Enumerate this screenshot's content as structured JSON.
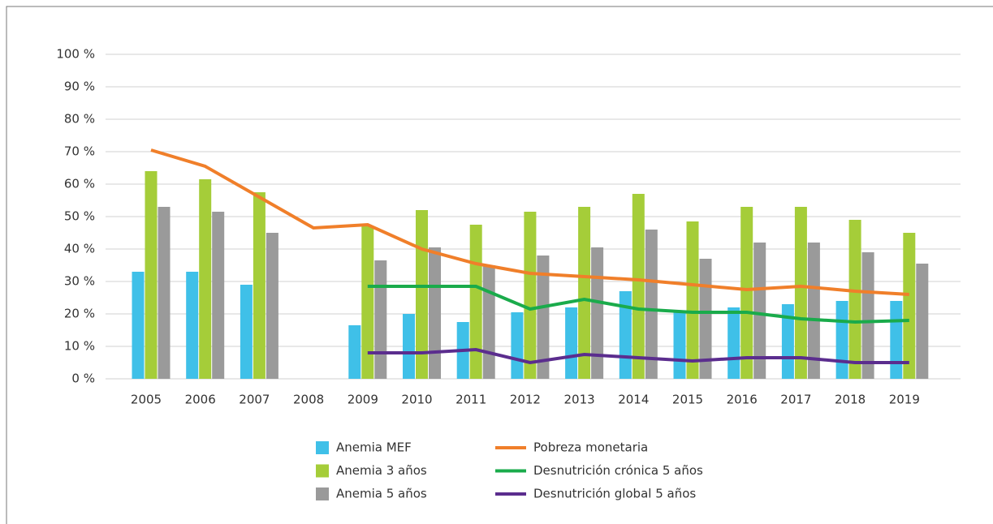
{
  "chart_data": {
    "type": "bar",
    "categories": [
      "2005",
      "2006",
      "2007",
      "2008",
      "2009",
      "2010",
      "2011",
      "2012",
      "2013",
      "2014",
      "2015",
      "2016",
      "2017",
      "2018",
      "2019"
    ],
    "series": [
      {
        "name": "Anemia MEF",
        "type": "bar",
        "color": "#3fc0e8",
        "values": [
          33,
          33,
          29,
          null,
          16.5,
          20,
          17.5,
          20.5,
          22,
          27,
          20.5,
          22,
          23,
          24,
          24
        ]
      },
      {
        "name": "Anemia 3 años",
        "type": "bar",
        "color": "#a5cd39",
        "values": [
          64,
          61.5,
          57.5,
          null,
          47,
          52,
          47.5,
          51.5,
          53,
          57,
          48.5,
          53,
          53,
          49,
          45
        ]
      },
      {
        "name": "Anemia 5 años",
        "type": "bar",
        "color": "#9a9a9a",
        "values": [
          53,
          51.5,
          45,
          null,
          36.5,
          40.5,
          35,
          38,
          40.5,
          46,
          37,
          42,
          42,
          39,
          35.5
        ]
      },
      {
        "name": "Pobreza monetaria",
        "type": "line",
        "color": "#f07f2a",
        "values": [
          70.5,
          65.5,
          56,
          46.5,
          47.5,
          40,
          35.5,
          32.5,
          31.5,
          30.5,
          29,
          27.5,
          28.5,
          27,
          26
        ]
      },
      {
        "name": "Desnutrición crónica 5 años",
        "type": "line",
        "color": "#1aab4b",
        "values": [
          null,
          null,
          null,
          null,
          28.5,
          28.5,
          28.5,
          21.5,
          24.5,
          21.5,
          20.5,
          20.5,
          18.5,
          17.5,
          18
        ]
      },
      {
        "name": "Desnutrición global 5 años",
        "type": "line",
        "color": "#5b2d8e",
        "values": [
          null,
          null,
          null,
          null,
          8,
          8,
          9,
          5,
          7.5,
          6.5,
          5.5,
          6.5,
          6.5,
          5,
          5
        ]
      }
    ],
    "ylim": [
      0,
      100
    ],
    "yticks": [
      {
        "value": 0,
        "label": "0 %"
      },
      {
        "value": 10,
        "label": "10 %"
      },
      {
        "value": 20,
        "label": "20 %"
      },
      {
        "value": 30,
        "label": "30 %"
      },
      {
        "value": 40,
        "label": "40 %"
      },
      {
        "value": 50,
        "label": "50 %"
      },
      {
        "value": 60,
        "label": "60 %"
      },
      {
        "value": 70,
        "label": "70 %"
      },
      {
        "value": 80,
        "label": "80 %"
      },
      {
        "value": 90,
        "label": "90 %"
      },
      {
        "value": 100,
        "label": "100 %"
      }
    ],
    "grid": true
  }
}
